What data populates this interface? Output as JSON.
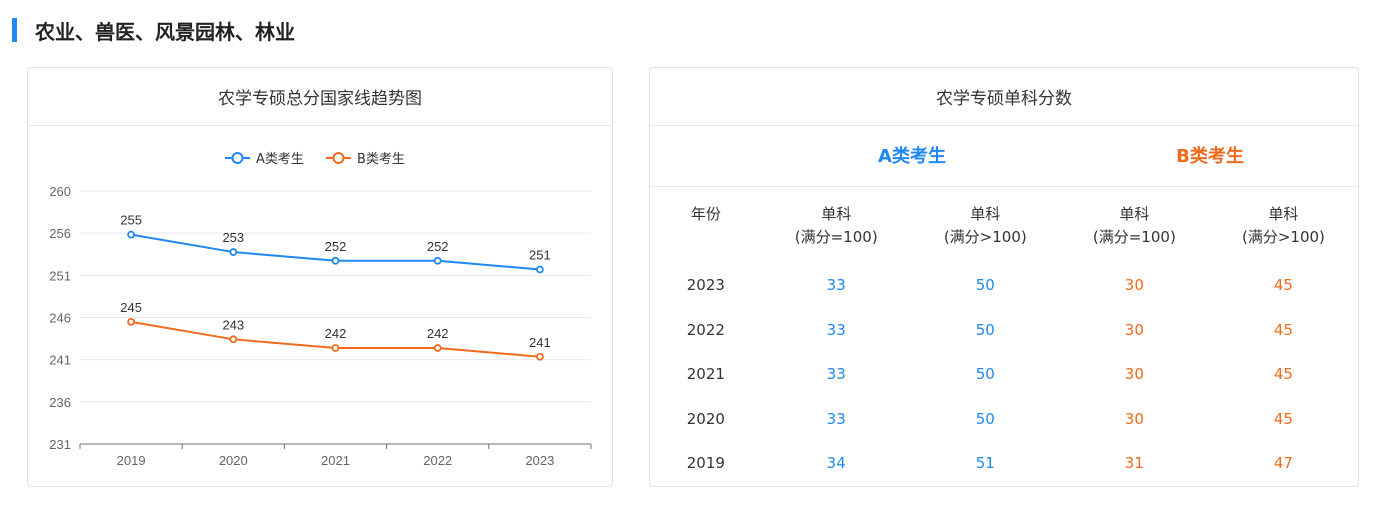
{
  "section": {
    "title": "农业、兽医、风景园林、林业"
  },
  "chart_card": {
    "title": "农学专硕总分国家线趋势图"
  },
  "chart_data": {
    "type": "line",
    "title": "农学专硕总分国家线趋势图",
    "categories": [
      "2019",
      "2020",
      "2021",
      "2022",
      "2023"
    ],
    "y_ticks": [
      "260",
      "256",
      "251",
      "246",
      "241",
      "236",
      "231"
    ],
    "ylim": [
      231,
      260
    ],
    "legend_position": "top-center",
    "grid": true,
    "series": [
      {
        "name": "A类考生",
        "color": "#1e88f5",
        "values": [
          255,
          253,
          252,
          252,
          251
        ]
      },
      {
        "name": "B类考生",
        "color": "#f26b1d",
        "values": [
          245,
          243,
          242,
          242,
          241
        ]
      }
    ]
  },
  "table_card": {
    "title": "农学专硕单科分数",
    "group_a": "A类考生",
    "group_b": "B类考生",
    "headers": [
      {
        "line1": "年份",
        "line2": ""
      },
      {
        "line1": "单科",
        "line2": "(满分=100)"
      },
      {
        "line1": "单科",
        "line2": "(满分>100)"
      },
      {
        "line1": "单科",
        "line2": "(满分=100)"
      },
      {
        "line1": "单科",
        "line2": "(满分>100)"
      }
    ],
    "rows": [
      [
        "2023",
        "33",
        "50",
        "30",
        "45"
      ],
      [
        "2022",
        "33",
        "50",
        "30",
        "45"
      ],
      [
        "2021",
        "33",
        "50",
        "30",
        "45"
      ],
      [
        "2020",
        "33",
        "50",
        "30",
        "45"
      ],
      [
        "2019",
        "34",
        "51",
        "31",
        "47"
      ]
    ]
  },
  "colors": {
    "accent": "#1e88f5",
    "series_a": "#1e88f5",
    "series_b": "#f26b1d"
  }
}
